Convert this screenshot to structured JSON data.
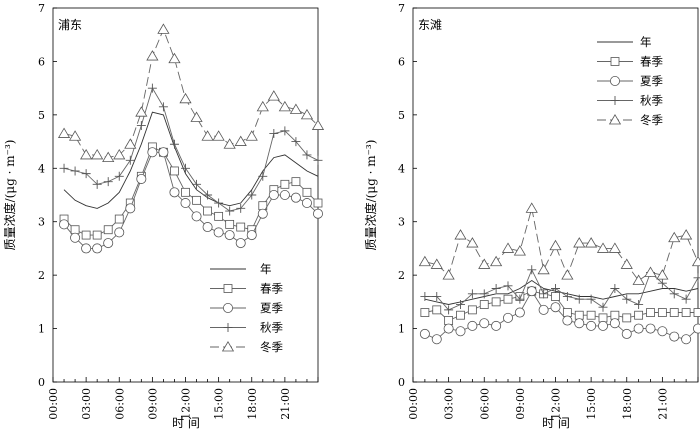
{
  "chart_data": [
    {
      "type": "line",
      "title": "浦东",
      "xlabel": "时 间",
      "ylabel": "质量浓度/(μg · m⁻³)",
      "ylim": [
        0,
        7
      ],
      "yticks": [
        "0",
        "1",
        "2",
        "3",
        "4",
        "5",
        "6",
        "7"
      ],
      "xticks": [
        "00:00",
        "03:00",
        "06:00",
        "09:00",
        "12:00",
        "15:00",
        "18:00",
        "21:00"
      ],
      "xtick_hours": [
        0,
        3,
        6,
        9,
        12,
        15,
        18,
        21
      ],
      "xlim": [
        0,
        24
      ],
      "legend_position": "bottom-right",
      "x": [
        1,
        2,
        3,
        4,
        5,
        6,
        7,
        8,
        9,
        10,
        11,
        12,
        13,
        14,
        15,
        16,
        17,
        18,
        19,
        20,
        21,
        22,
        23,
        24
      ],
      "series": [
        {
          "name": "年",
          "marker": "none",
          "dash": "solid",
          "values": [
            3.6,
            3.4,
            3.3,
            3.25,
            3.35,
            3.55,
            3.95,
            4.45,
            5.05,
            5.0,
            4.4,
            3.9,
            3.6,
            3.45,
            3.35,
            3.3,
            3.35,
            3.6,
            3.95,
            4.2,
            4.25,
            4.1,
            3.95,
            3.85
          ]
        },
        {
          "name": "春季",
          "marker": "square",
          "dash": "solid",
          "values": [
            3.05,
            2.85,
            2.75,
            2.75,
            2.85,
            3.05,
            3.35,
            3.85,
            4.4,
            4.3,
            3.95,
            3.55,
            3.4,
            3.2,
            3.1,
            2.95,
            2.9,
            2.85,
            3.3,
            3.6,
            3.7,
            3.75,
            3.55,
            3.35
          ]
        },
        {
          "name": "夏季",
          "marker": "circle",
          "dash": "solid",
          "values": [
            2.95,
            2.7,
            2.5,
            2.5,
            2.6,
            2.8,
            3.25,
            3.8,
            4.3,
            4.3,
            3.55,
            3.35,
            3.1,
            2.9,
            2.8,
            2.75,
            2.6,
            2.75,
            3.15,
            3.5,
            3.5,
            3.45,
            3.35,
            3.15
          ]
        },
        {
          "name": "秋季",
          "marker": "plus",
          "dash": "solid",
          "values": [
            4.0,
            3.95,
            3.9,
            3.7,
            3.75,
            3.85,
            4.15,
            4.8,
            5.5,
            5.15,
            4.45,
            4.0,
            3.7,
            3.5,
            3.35,
            3.2,
            3.25,
            3.5,
            3.85,
            4.65,
            4.7,
            4.5,
            4.25,
            4.15
          ]
        },
        {
          "name": "冬季",
          "marker": "triangle",
          "dash": "dashed",
          "values": [
            4.65,
            4.6,
            4.25,
            4.25,
            4.2,
            4.25,
            4.45,
            5.05,
            6.1,
            6.6,
            6.05,
            5.3,
            4.95,
            4.6,
            4.6,
            4.45,
            4.5,
            4.6,
            5.15,
            5.35,
            5.15,
            5.1,
            5.0,
            4.8
          ]
        }
      ]
    },
    {
      "type": "line",
      "title": "东滩",
      "xlabel": "时 间",
      "ylabel": "质量浓度/(μg · m⁻³)",
      "ylim": [
        0,
        7
      ],
      "yticks": [
        "0",
        "1",
        "2",
        "3",
        "4",
        "5",
        "6",
        "7"
      ],
      "xticks": [
        "00:00",
        "03:00",
        "06:00",
        "09:00",
        "12:00",
        "15:00",
        "18:00",
        "21:00"
      ],
      "xtick_hours": [
        0,
        3,
        6,
        9,
        12,
        15,
        18,
        21
      ],
      "xlim": [
        0,
        24
      ],
      "legend_position": "top-right",
      "x": [
        1,
        2,
        3,
        4,
        5,
        6,
        7,
        8,
        9,
        10,
        11,
        12,
        13,
        14,
        15,
        16,
        17,
        18,
        19,
        20,
        21,
        22,
        23,
        24
      ],
      "series": [
        {
          "name": "年",
          "marker": "none",
          "dash": "solid",
          "values": [
            1.55,
            1.5,
            1.45,
            1.5,
            1.55,
            1.6,
            1.65,
            1.65,
            1.75,
            1.9,
            1.75,
            1.7,
            1.65,
            1.6,
            1.6,
            1.55,
            1.6,
            1.65,
            1.65,
            1.7,
            1.75,
            1.75,
            1.7,
            1.75
          ]
        },
        {
          "name": "春季",
          "marker": "square",
          "dash": "solid",
          "values": [
            1.3,
            1.35,
            1.15,
            1.25,
            1.35,
            1.45,
            1.5,
            1.55,
            1.6,
            1.7,
            1.65,
            1.6,
            1.3,
            1.25,
            1.25,
            1.2,
            1.25,
            1.2,
            1.25,
            1.3,
            1.3,
            1.3,
            1.3,
            1.3
          ]
        },
        {
          "name": "夏季",
          "marker": "circle",
          "dash": "solid",
          "values": [
            0.9,
            0.8,
            1.0,
            0.95,
            1.05,
            1.1,
            1.05,
            1.2,
            1.3,
            1.7,
            1.35,
            1.4,
            1.15,
            1.1,
            1.05,
            1.05,
            1.1,
            0.9,
            1.0,
            1.0,
            0.95,
            0.85,
            0.8,
            1.0
          ]
        },
        {
          "name": "秋季",
          "marker": "plus",
          "dash": "solid",
          "values": [
            1.6,
            1.6,
            1.35,
            1.45,
            1.65,
            1.65,
            1.75,
            1.8,
            1.55,
            2.1,
            1.65,
            1.75,
            1.6,
            1.55,
            1.55,
            1.4,
            1.75,
            1.55,
            1.45,
            2.05,
            1.85,
            1.65,
            1.55,
            1.95
          ]
        },
        {
          "name": "冬季",
          "marker": "triangle",
          "dash": "dashed",
          "values": [
            2.25,
            2.2,
            2.0,
            2.75,
            2.6,
            2.2,
            2.25,
            2.5,
            2.45,
            3.25,
            2.1,
            2.55,
            2.0,
            2.6,
            2.6,
            2.5,
            2.5,
            2.2,
            1.9,
            2.05,
            2.0,
            2.7,
            2.75,
            2.25
          ]
        }
      ]
    }
  ]
}
